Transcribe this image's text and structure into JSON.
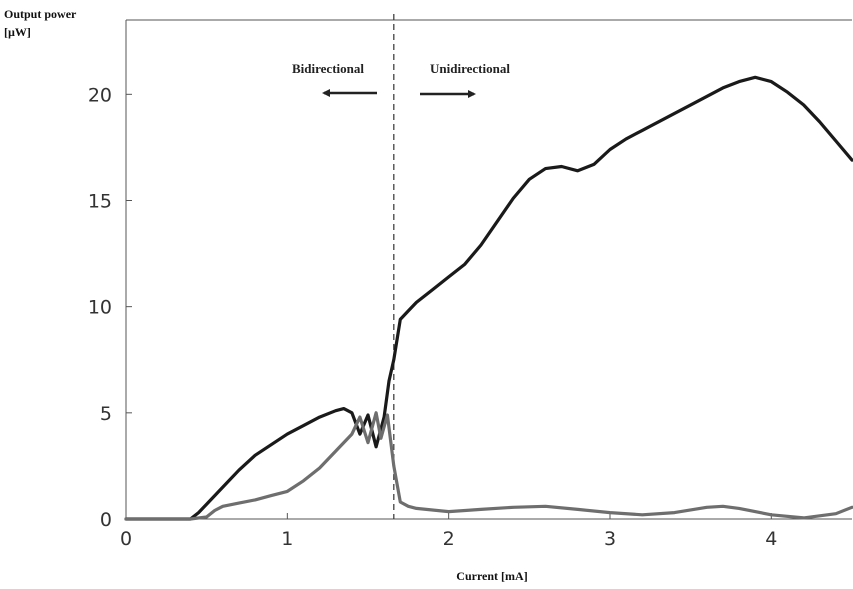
{
  "chart_data": {
    "type": "line",
    "ylabel_line1": "Output power",
    "ylabel_line2": "[µW]",
    "xlabel": "Current [mA]",
    "xlim": [
      0,
      4.5
    ],
    "ylim": [
      0,
      23.5
    ],
    "x_ticks": [
      "0",
      "1",
      "2",
      "3",
      "4"
    ],
    "y_ticks": [
      "0",
      "5",
      "10",
      "15",
      "20"
    ],
    "grid": false,
    "threshold_x": 1.66,
    "annotations": {
      "left": "Bidirectional",
      "right": "Unidirectional"
    },
    "colors": {
      "series_dark": "#1a1a1a",
      "series_gray": "#6e6e6e",
      "axis": "#555555"
    },
    "series": [
      {
        "x": [
          0,
          0.2,
          0.4,
          0.45,
          0.5,
          0.6,
          0.7,
          0.8,
          0.9,
          1.0,
          1.1,
          1.2,
          1.3,
          1.35,
          1.4,
          1.45,
          1.5,
          1.55,
          1.6,
          1.63,
          1.66,
          1.7,
          1.75,
          1.8,
          1.9,
          2.0,
          2.1,
          2.2,
          2.3,
          2.4,
          2.5,
          2.6,
          2.7,
          2.8,
          2.9,
          3.0,
          3.1,
          3.2,
          3.3,
          3.4,
          3.5,
          3.6,
          3.7,
          3.8,
          3.9,
          4.0,
          4.1,
          4.2,
          4.3,
          4.4,
          4.5
        ],
        "y": [
          0,
          0,
          0,
          0.3,
          0.7,
          1.5,
          2.3,
          3.0,
          3.5,
          4.0,
          4.4,
          4.8,
          5.1,
          5.2,
          5.0,
          4.0,
          4.9,
          3.4,
          4.8,
          6.5,
          7.5,
          9.4,
          9.8,
          10.2,
          10.8,
          11.4,
          12.0,
          12.9,
          14.0,
          15.1,
          16.0,
          16.5,
          16.6,
          16.4,
          16.7,
          17.4,
          17.9,
          18.3,
          18.7,
          19.1,
          19.5,
          19.9,
          20.3,
          20.6,
          20.8,
          20.6,
          20.1,
          19.5,
          18.7,
          17.8,
          16.9
        ]
      },
      {
        "x": [
          0,
          0.4,
          0.5,
          0.55,
          0.6,
          0.7,
          0.8,
          0.9,
          1.0,
          1.1,
          1.2,
          1.3,
          1.4,
          1.45,
          1.5,
          1.55,
          1.58,
          1.62,
          1.66,
          1.7,
          1.75,
          1.8,
          2.0,
          2.2,
          2.4,
          2.6,
          2.8,
          3.0,
          3.2,
          3.4,
          3.6,
          3.7,
          3.8,
          4.0,
          4.2,
          4.4,
          4.5
        ],
        "y": [
          0,
          0,
          0.1,
          0.4,
          0.6,
          0.75,
          0.9,
          1.1,
          1.3,
          1.8,
          2.4,
          3.2,
          4.0,
          4.8,
          3.6,
          5.0,
          3.8,
          4.9,
          2.5,
          0.8,
          0.6,
          0.5,
          0.35,
          0.45,
          0.55,
          0.6,
          0.45,
          0.3,
          0.2,
          0.3,
          0.55,
          0.6,
          0.5,
          0.2,
          0.05,
          0.25,
          0.55
        ]
      }
    ]
  }
}
